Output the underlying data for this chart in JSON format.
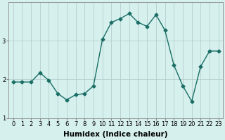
{
  "x": [
    0,
    1,
    2,
    3,
    4,
    5,
    6,
    7,
    8,
    9,
    10,
    11,
    12,
    13,
    14,
    15,
    16,
    17,
    18,
    19,
    20,
    21,
    22,
    23
  ],
  "y": [
    1.93,
    1.93,
    1.93,
    2.17,
    1.97,
    1.63,
    1.47,
    1.6,
    1.63,
    1.83,
    3.03,
    3.47,
    3.57,
    3.7,
    3.47,
    3.37,
    3.67,
    3.27,
    2.37,
    1.83,
    1.43,
    2.33,
    2.73,
    2.73
  ],
  "line_color": "#1a6e65",
  "marker": "D",
  "markersize": 2.5,
  "linewidth": 1.0,
  "bg_color": "#d6f0ee",
  "grid_color": "#b0c8c8",
  "xlabel": "Humidex (Indice chaleur)",
  "ylabel": "",
  "xlim": [
    -0.5,
    23.5
  ],
  "ylim": [
    1.0,
    4.0
  ],
  "yticks": [
    1,
    2,
    3
  ],
  "xticks": [
    0,
    1,
    2,
    3,
    4,
    5,
    6,
    7,
    8,
    9,
    10,
    11,
    12,
    13,
    14,
    15,
    16,
    17,
    18,
    19,
    20,
    21,
    22,
    23
  ],
  "tick_fontsize": 6,
  "xlabel_fontsize": 7.5,
  "spine_color": "#888888"
}
